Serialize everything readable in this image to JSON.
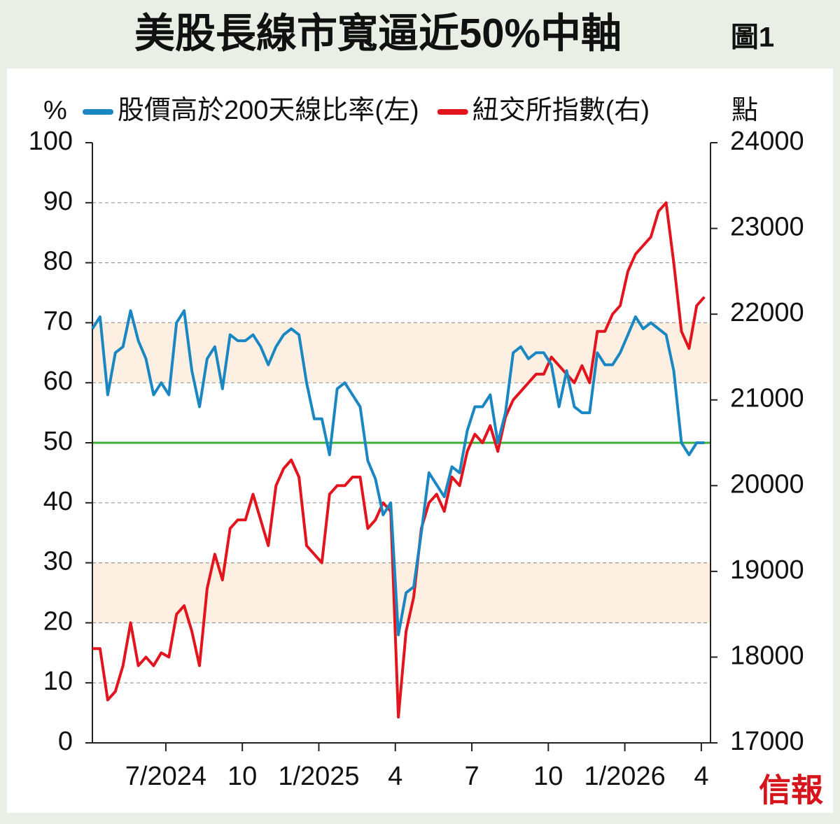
{
  "chart_data": {
    "type": "line",
    "title": "美股長線市寬逼近50%中軸",
    "figure_label": "圖1",
    "source": "信報",
    "y_unit": "%",
    "y2_unit": "點",
    "xlim": [
      2024.26,
      2026.28
    ],
    "xticks": [
      {
        "value": 2024.5,
        "label": "7/2024"
      },
      {
        "value": 2024.75,
        "label": "10"
      },
      {
        "value": 2025.0,
        "label": "1/2025"
      },
      {
        "value": 2025.25,
        "label": "4"
      },
      {
        "value": 2025.5,
        "label": "7"
      },
      {
        "value": 2025.75,
        "label": "10"
      },
      {
        "value": 2026.0,
        "label": "1/2026"
      },
      {
        "value": 2026.25,
        "label": "4"
      }
    ],
    "ylim": [
      0,
      100
    ],
    "yticks": [
      0,
      10,
      20,
      30,
      40,
      50,
      60,
      70,
      80,
      90,
      100
    ],
    "y2lim": [
      17000,
      24000
    ],
    "y2ticks": [
      17000,
      18000,
      19000,
      20000,
      21000,
      22000,
      23000,
      24000
    ],
    "grid": true,
    "bands": [
      [
        20,
        30
      ],
      [
        60,
        70
      ]
    ],
    "band_color": "#fdf0e3",
    "reference_line": {
      "value": 50,
      "color": "#3cb034"
    },
    "x": [
      2024.26,
      2024.285,
      2024.31,
      2024.335,
      2024.36,
      2024.385,
      2024.41,
      2024.435,
      2024.46,
      2024.485,
      2024.51,
      2024.535,
      2024.56,
      2024.585,
      2024.61,
      2024.635,
      2024.66,
      2024.685,
      2024.71,
      2024.735,
      2024.76,
      2024.785,
      2024.81,
      2024.835,
      2024.86,
      2024.885,
      2024.91,
      2024.935,
      2024.96,
      2024.985,
      2025.01,
      2025.035,
      2025.06,
      2025.085,
      2025.11,
      2025.135,
      2025.16,
      2025.185,
      2025.21,
      2025.235,
      2025.26,
      2025.285,
      2025.31,
      2025.335,
      2025.36,
      2025.385,
      2025.41,
      2025.435,
      2025.46,
      2025.485,
      2025.51,
      2025.535,
      2025.56,
      2025.585,
      2025.61,
      2025.635,
      2025.66,
      2025.685,
      2025.71,
      2025.735,
      2025.76,
      2025.785,
      2025.81,
      2025.835,
      2025.86,
      2025.885,
      2025.91,
      2025.935,
      2025.96,
      2025.985,
      2026.01,
      2026.035,
      2026.06,
      2026.085,
      2026.11,
      2026.135,
      2026.16,
      2026.185,
      2026.21,
      2026.235,
      2026.26
    ],
    "series": [
      {
        "name": "股價高於200天線比率(左)",
        "color": "#1a87c2",
        "axis": "y",
        "values": [
          69,
          71,
          58,
          65,
          66,
          72,
          67,
          64,
          58,
          60,
          58,
          70,
          72,
          62,
          56,
          64,
          66,
          59,
          68,
          67,
          67,
          68,
          66,
          63,
          66,
          68,
          69,
          68,
          60,
          54,
          54,
          48,
          59,
          60,
          58,
          56,
          47,
          44,
          38,
          40,
          18,
          25,
          26,
          35,
          45,
          43,
          41,
          46,
          45,
          52,
          56,
          56,
          58,
          50,
          55,
          65,
          66,
          64,
          65,
          65,
          63,
          56,
          62,
          56,
          55,
          55,
          65,
          63,
          63,
          65,
          68,
          71,
          69,
          70,
          69,
          68,
          62,
          50,
          48,
          50,
          50
        ]
      },
      {
        "name": "紐交所指數(右)",
        "color": "#e2141d",
        "axis": "y2",
        "values": [
          18100,
          18100,
          17500,
          17600,
          17900,
          18400,
          17900,
          18000,
          17900,
          18050,
          18000,
          18500,
          18600,
          18300,
          17900,
          18800,
          19200,
          18900,
          19500,
          19600,
          19600,
          19900,
          19600,
          19300,
          20000,
          20200,
          20300,
          20100,
          19300,
          19200,
          19100,
          19900,
          20000,
          20000,
          20100,
          20100,
          19500,
          19600,
          19800,
          19700,
          17300,
          18300,
          18700,
          19500,
          19800,
          19900,
          19700,
          20100,
          20000,
          20400,
          20600,
          20500,
          20700,
          20400,
          20800,
          21000,
          21100,
          21200,
          21300,
          21300,
          21500,
          21400,
          21300,
          21200,
          21400,
          21200,
          21800,
          21800,
          22000,
          22100,
          22500,
          22700,
          22800,
          22900,
          23200,
          23300,
          22600,
          21800,
          21600,
          22100,
          22200
        ]
      }
    ]
  }
}
